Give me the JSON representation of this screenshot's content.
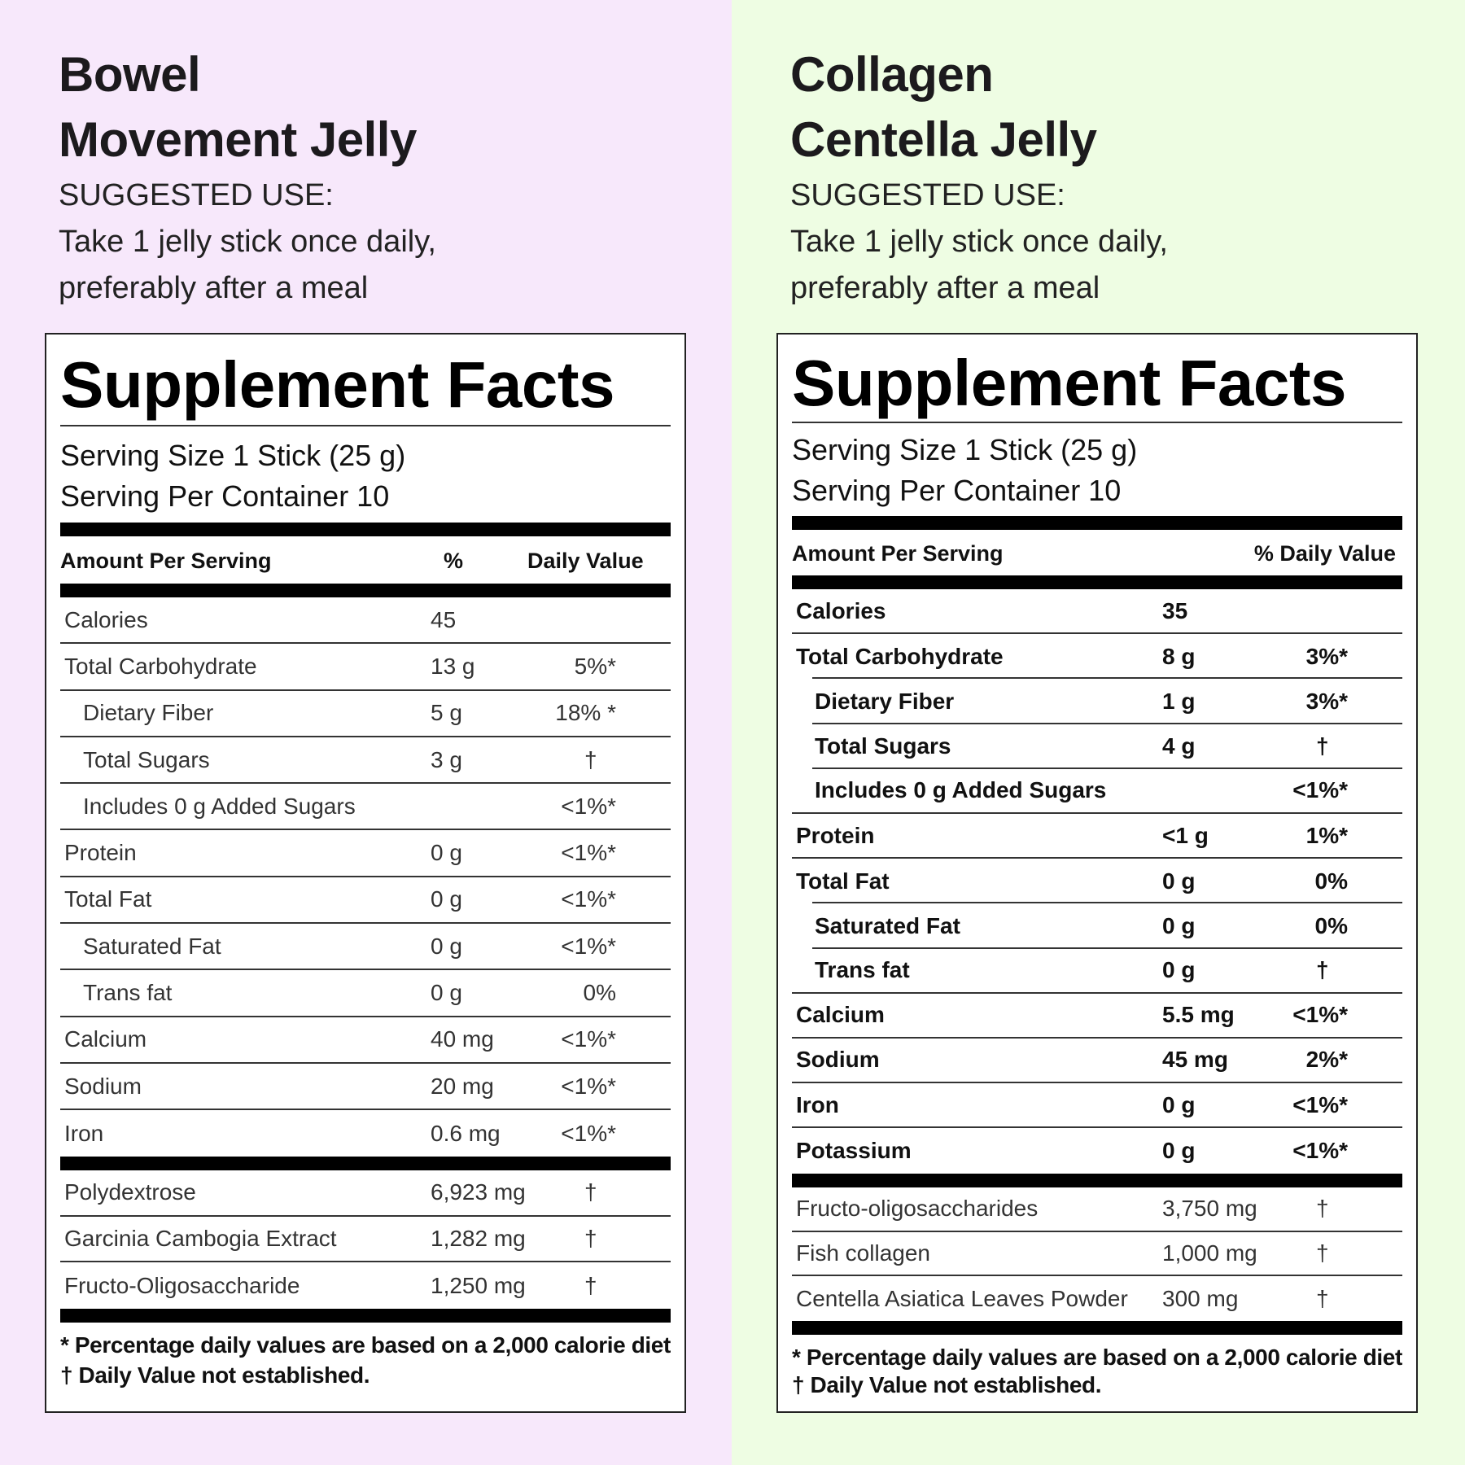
{
  "colors": {
    "left_bg": "#f7e8fb",
    "right_bg": "#eefde3"
  },
  "products": [
    {
      "title_line1": "Bowel",
      "title_line2": "Movement Jelly",
      "suggested_use_label": "SUGGESTED USE:",
      "suggested_use_line1": "Take 1 jelly stick once daily,",
      "suggested_use_line2": "preferably after a meal",
      "facts": {
        "heading": "Supplement Facts",
        "serving_size": "Serving Size 1 Stick (25 g)",
        "servings_per_container": "Serving Per Container 10",
        "header_amount": "Amount Per Serving",
        "header_percent": "%",
        "header_dv": "Daily Value",
        "nutrients": [
          {
            "name": "Calories",
            "amount": "45",
            "dv": "",
            "indent": false
          },
          {
            "name": "Total Carbohydrate",
            "amount": "13 g",
            "dv": "5%*",
            "indent": false
          },
          {
            "name": "Dietary Fiber",
            "amount": "5 g",
            "dv": "18% *",
            "indent": true
          },
          {
            "name": "Total Sugars",
            "amount": "3 g",
            "dv": "†",
            "indent": true
          },
          {
            "name": "Includes 0 g Added Sugars",
            "amount": "",
            "dv": "<1%*",
            "indent": true
          },
          {
            "name": "Protein",
            "amount": "0 g",
            "dv": "<1%*",
            "indent": false
          },
          {
            "name": "Total Fat",
            "amount": "0 g",
            "dv": "<1%*",
            "indent": false
          },
          {
            "name": "Saturated Fat",
            "amount": "0 g",
            "dv": "<1%*",
            "indent": true
          },
          {
            "name": "Trans fat",
            "amount": "0 g",
            "dv": "0%",
            "indent": true
          },
          {
            "name": "Calcium",
            "amount": "40 mg",
            "dv": "<1%*",
            "indent": false
          },
          {
            "name": "Sodium",
            "amount": "20 mg",
            "dv": "<1%*",
            "indent": false
          },
          {
            "name": "Iron",
            "amount": "0.6 mg",
            "dv": "<1%*",
            "indent": false
          }
        ],
        "other_ingredients": [
          {
            "name": "Polydextrose",
            "amount": "6,923 mg",
            "dv": "†"
          },
          {
            "name": "Garcinia Cambogia Extract",
            "amount": "1,282 mg",
            "dv": "†"
          },
          {
            "name": "Fructo-Oligosaccharide",
            "amount": "1,250 mg",
            "dv": "†"
          }
        ],
        "footnote1": "* Percentage daily values are based on a 2,000 calorie diet",
        "footnote2": "† Daily Value not established."
      }
    },
    {
      "title_line1": "Collagen",
      "title_line2": "Centella Jelly",
      "suggested_use_label": "SUGGESTED USE:",
      "suggested_use_line1": "Take 1 jelly stick once daily,",
      "suggested_use_line2": "preferably after a meal",
      "facts": {
        "heading": "Supplement Facts",
        "serving_size": "Serving Size 1 Stick (25 g)",
        "servings_per_container": "Serving Per Container 10",
        "header_amount": "Amount Per Serving",
        "header_dv": "% Daily Value",
        "nutrients": [
          {
            "name": "Calories",
            "amount": "35",
            "dv": "",
            "indent": false
          },
          {
            "name": "Total Carbohydrate",
            "amount": "8 g",
            "dv": "3%*",
            "indent": false
          },
          {
            "name": "Dietary Fiber",
            "amount": "1 g",
            "dv": "3%*",
            "indent": true
          },
          {
            "name": "Total Sugars",
            "amount": "4 g",
            "dv": "†",
            "indent": true
          },
          {
            "name": "Includes 0 g Added Sugars",
            "amount": "",
            "dv": "<1%*",
            "indent": true
          },
          {
            "name": "Protein",
            "amount": "<1 g",
            "dv": "1%*",
            "indent": false
          },
          {
            "name": "Total Fat",
            "amount": "0 g",
            "dv": "0%",
            "indent": false
          },
          {
            "name": "Saturated Fat",
            "amount": "0 g",
            "dv": "0%",
            "indent": true
          },
          {
            "name": "Trans fat",
            "amount": "0 g",
            "dv": "†",
            "indent": true
          },
          {
            "name": "Calcium",
            "amount": "5.5 mg",
            "dv": "<1%*",
            "indent": false
          },
          {
            "name": "Sodium",
            "amount": "45 mg",
            "dv": "2%*",
            "indent": false
          },
          {
            "name": "Iron",
            "amount": "0 g",
            "dv": "<1%*",
            "indent": false
          },
          {
            "name": "Potassium",
            "amount": "0 g",
            "dv": "<1%*",
            "indent": false
          }
        ],
        "other_ingredients": [
          {
            "name": "Fructo-oligosaccharides",
            "amount": "3,750 mg",
            "dv": "†"
          },
          {
            "name": "Fish collagen",
            "amount": "1,000 mg",
            "dv": "†"
          },
          {
            "name": "Centella Asiatica Leaves Powder",
            "amount": "300 mg",
            "dv": "†"
          }
        ],
        "footnote1": "* Percentage daily values are based on a 2,000 calorie diet",
        "footnote2": "† Daily Value not established."
      }
    }
  ]
}
